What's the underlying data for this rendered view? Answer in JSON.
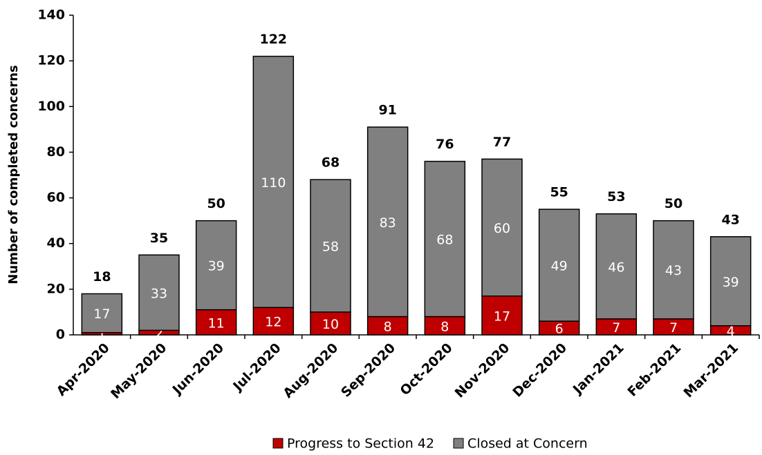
{
  "chart_data": {
    "type": "stacked_bar",
    "y_label": "Number of completed concerns",
    "categories": [
      "Apr-2020",
      "May-2020",
      "Jun-2020",
      "Jul-2020",
      "Aug-2020",
      "Sep-2020",
      "Oct-2020",
      "Nov-2020",
      "Dec-2020",
      "Jan-2021",
      "Feb-2021",
      "Mar-2021"
    ],
    "series": [
      {
        "name": "Progress to Section 42",
        "color": "#c00000",
        "values": [
          1,
          2,
          11,
          12,
          10,
          8,
          8,
          17,
          6,
          7,
          7,
          4
        ]
      },
      {
        "name": "Closed at Concern",
        "color": "#808080",
        "values": [
          17,
          33,
          39,
          110,
          58,
          83,
          68,
          60,
          49,
          46,
          43,
          39
        ]
      }
    ],
    "totals": [
      18,
      35,
      50,
      122,
      68,
      91,
      76,
      77,
      55,
      53,
      50,
      43
    ],
    "ylim": [
      0,
      140
    ],
    "yticks": [
      0,
      20,
      40,
      60,
      80,
      100,
      120,
      140
    ],
    "grid": false,
    "legend": "bottom"
  }
}
